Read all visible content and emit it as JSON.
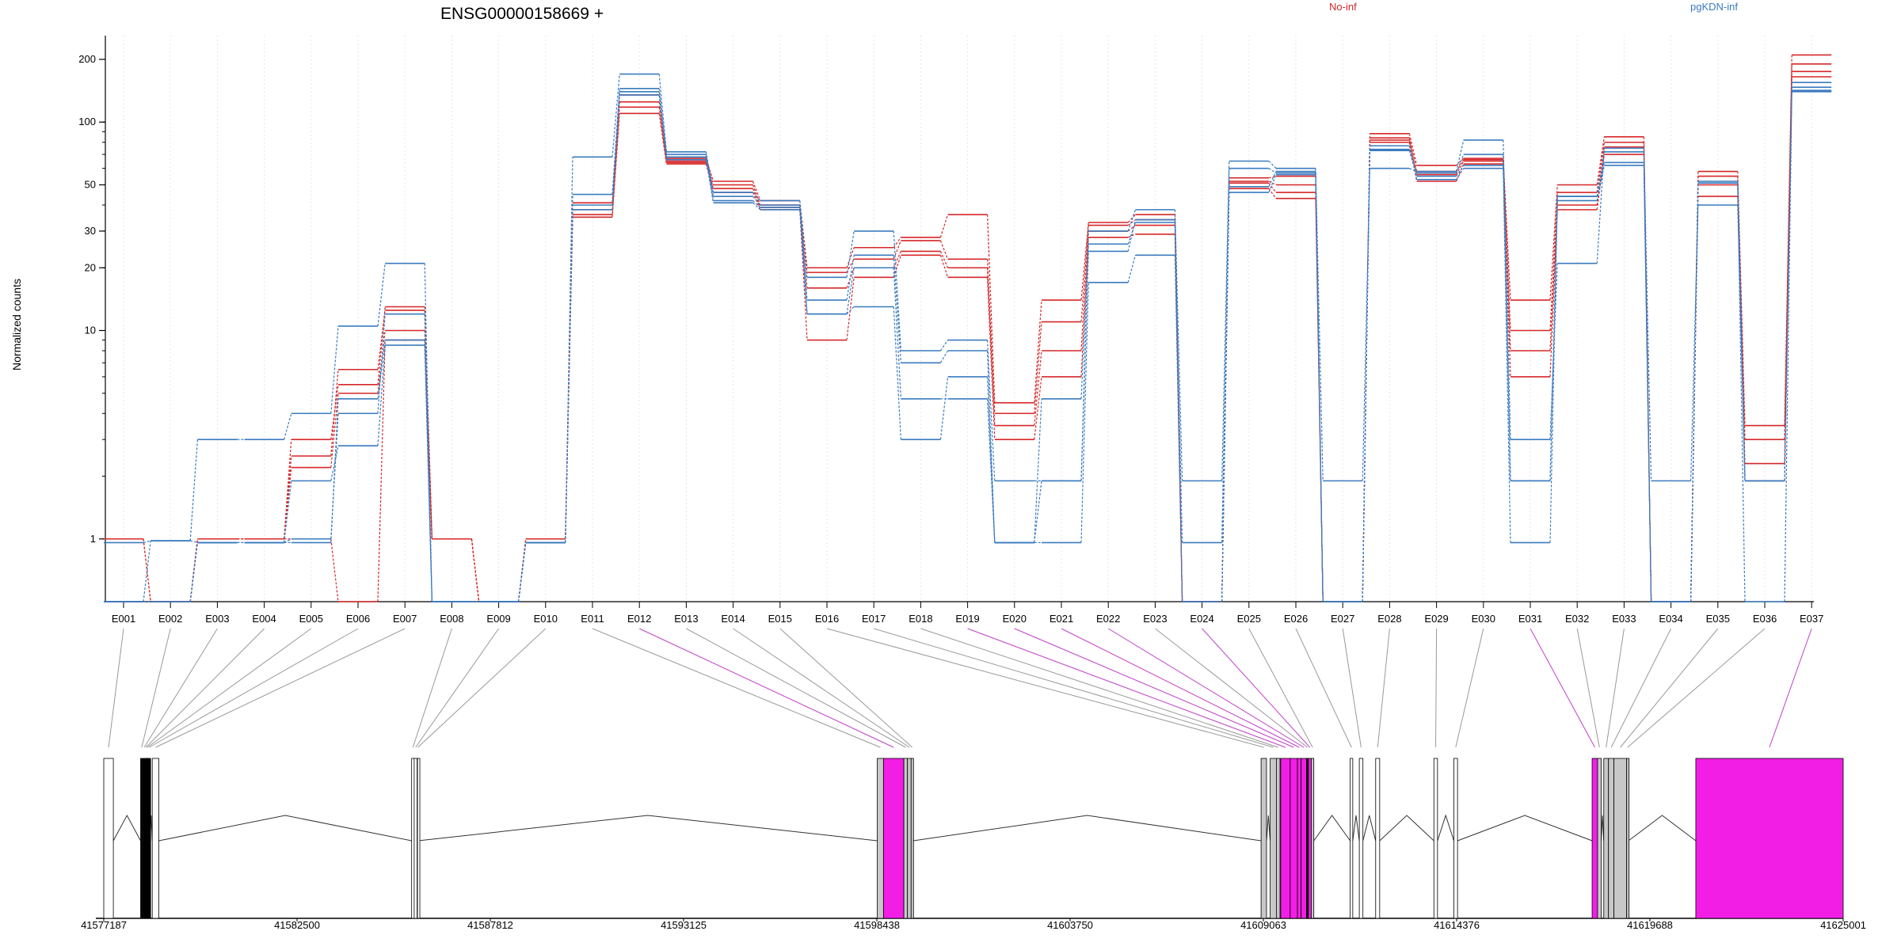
{
  "chart_data": {
    "type": "line",
    "title": "ENSG00000158669 +",
    "ylabel": "Normalized counts",
    "yscale": "log",
    "ylim": [
      0.5,
      260
    ],
    "yticks": [
      1,
      10,
      20,
      30,
      50,
      100,
      200
    ],
    "grid": "vertical dotted",
    "legend_placement": "top-right",
    "legend": [
      {
        "label": "No-inf",
        "color": "#d62728"
      },
      {
        "label": "pgKDN-inf",
        "color": "#3a7bbf"
      }
    ],
    "categories": [
      "E001",
      "E002",
      "E003",
      "E004",
      "E005",
      "E006",
      "E007",
      "E008",
      "E009",
      "E010",
      "E011",
      "E012",
      "E013",
      "E014",
      "E015",
      "E016",
      "E017",
      "E018",
      "E019",
      "E020",
      "E021",
      "E022",
      "E023",
      "E024",
      "E025",
      "E026",
      "E027",
      "E028",
      "E029",
      "E030",
      "E031",
      "E032",
      "E033",
      "E034",
      "E035",
      "E036",
      "E037"
    ],
    "series": [
      {
        "group": "No-inf",
        "color": "#d62728",
        "values": [
          1.0,
          0.5,
          1.0,
          1.0,
          2.5,
          6.5,
          12.5,
          1.0,
          0.5,
          1.0,
          38,
          135,
          67,
          52,
          42,
          20,
          25,
          28,
          36,
          4.5,
          14,
          33,
          36,
          0.5,
          54,
          55,
          0.5,
          88,
          62,
          67,
          14,
          50,
          85,
          0.5,
          58,
          3.5,
          210
        ]
      },
      {
        "group": "No-inf",
        "color": "#d62728",
        "values": [
          1.0,
          0.5,
          1.0,
          1.0,
          3.0,
          5.5,
          13.0,
          1.0,
          0.5,
          1.0,
          41,
          125,
          65,
          50,
          40,
          19,
          22,
          27,
          22,
          4.0,
          11,
          32,
          34,
          0.5,
          52,
          50,
          0.5,
          84,
          58,
          66,
          10,
          46,
          80,
          0.5,
          55,
          3.0,
          190
        ]
      },
      {
        "group": "No-inf",
        "color": "#d62728",
        "values": [
          0.5,
          0.5,
          1.0,
          1.0,
          2.2,
          5.0,
          10.0,
          1.0,
          0.5,
          1.0,
          36,
          118,
          64,
          48,
          39,
          16,
          20,
          24,
          20,
          3.5,
          8,
          30,
          32,
          0.5,
          51,
          46,
          0.5,
          82,
          56,
          65,
          8,
          40,
          76,
          0.5,
          50,
          2.3,
          175
        ]
      },
      {
        "group": "No-inf",
        "color": "#d62728",
        "values": [
          0.5,
          0.5,
          1.0,
          1.0,
          1.0,
          0.5,
          9.0,
          1.0,
          0.5,
          1.0,
          35,
          110,
          63,
          46,
          38,
          9,
          18,
          23,
          18,
          3.0,
          6,
          28,
          29,
          0.5,
          48,
          43,
          0.5,
          80,
          52,
          63,
          6,
          38,
          70,
          0.5,
          44,
          1.9,
          165
        ]
      },
      {
        "group": "pgKDN-inf",
        "color": "#3a7bbf",
        "values": [
          0.5,
          0.98,
          3.0,
          3.0,
          4.0,
          10.5,
          21,
          0.5,
          0.5,
          0.96,
          68,
          170,
          72,
          46,
          42,
          18,
          30,
          8,
          9,
          1.9,
          1.9,
          30,
          38,
          1.9,
          65,
          60,
          1.9,
          60,
          58,
          82,
          3.0,
          21,
          75,
          1.9,
          40,
          1.9,
          155
        ]
      },
      {
        "group": "pgKDN-inf",
        "color": "#3a7bbf",
        "values": [
          0.96,
          0.98,
          0.96,
          0.96,
          1.0,
          4.0,
          12,
          0.5,
          0.5,
          0.96,
          45,
          145,
          70,
          44,
          40,
          14,
          23,
          7,
          8,
          0.96,
          1.9,
          24,
          34,
          0.96,
          60,
          57,
          0.5,
          74,
          57,
          70,
          1.9,
          44,
          72,
          0.5,
          51,
          1.9,
          147
        ]
      },
      {
        "group": "pgKDN-inf",
        "color": "#3a7bbf",
        "values": [
          0.5,
          0.5,
          0.96,
          0.96,
          1.9,
          2.8,
          8.5,
          0.5,
          0.5,
          0.96,
          40,
          140,
          68,
          42,
          39,
          12,
          13,
          3.0,
          6,
          0.96,
          0.96,
          17,
          23,
          0.5,
          46,
          56,
          0.5,
          77,
          53,
          60,
          0.96,
          44,
          64,
          0.5,
          52,
          1.9,
          142
        ]
      },
      {
        "group": "pgKDN-inf",
        "color": "#3a7bbf",
        "values": [
          0.5,
          0.5,
          0.96,
          0.96,
          0.96,
          4.7,
          9.0,
          0.5,
          0.5,
          0.96,
          38,
          135,
          66,
          41,
          38,
          12,
          20,
          4.7,
          4.7,
          0.96,
          4.7,
          26,
          33,
          0.5,
          49,
          58,
          0.5,
          73,
          55,
          62,
          1.9,
          42,
          62,
          0.5,
          51,
          0.5,
          140
        ]
      }
    ],
    "gene_model": {
      "coordinate_ticks": [
        "41577187",
        "41582500",
        "41587812",
        "41593125",
        "41598438",
        "41603750",
        "41609063",
        "41614376",
        "41619688",
        "41625001"
      ],
      "xlim": [
        41577187,
        41625001
      ],
      "exons": [
        {
          "id": "E001",
          "start": 41577187,
          "end": 41577450,
          "color": "#ffffff",
          "diff": false
        },
        {
          "id": "E002",
          "start": 41578200,
          "end": 41578260,
          "color": "#000000",
          "diff": false
        },
        {
          "id": "E003",
          "start": 41578280,
          "end": 41578320,
          "color": "#000000",
          "diff": false
        },
        {
          "id": "E004",
          "start": 41578330,
          "end": 41578360,
          "color": "#000000",
          "diff": false
        },
        {
          "id": "E005",
          "start": 41578370,
          "end": 41578400,
          "color": "#000000",
          "diff": false
        },
        {
          "id": "E006",
          "start": 41578410,
          "end": 41578460,
          "color": "#000000",
          "diff": false
        },
        {
          "id": "E007",
          "start": 41578520,
          "end": 41578700,
          "color": "#ffffff",
          "diff": false
        },
        {
          "id": "E008",
          "start": 41585650,
          "end": 41585720,
          "color": "#ffffff",
          "diff": false
        },
        {
          "id": "E009",
          "start": 41585720,
          "end": 41585800,
          "color": "#ffffff",
          "diff": false
        },
        {
          "id": "E010",
          "start": 41585810,
          "end": 41585830,
          "color": "#ffffff",
          "diff": false
        },
        {
          "id": "E011",
          "start": 41598450,
          "end": 41598620,
          "color": "#c8c8c8",
          "diff": false
        },
        {
          "id": "E012",
          "start": 41598620,
          "end": 41599180,
          "color": "#f21ee6",
          "diff": true
        },
        {
          "id": "E013",
          "start": 41599180,
          "end": 41599280,
          "color": "#c8c8c8",
          "diff": false
        },
        {
          "id": "E014",
          "start": 41599280,
          "end": 41599380,
          "color": "#c8c8c8",
          "diff": false
        },
        {
          "id": "E015",
          "start": 41599380,
          "end": 41599440,
          "color": "#c8c8c8",
          "diff": false
        },
        {
          "id": "E016",
          "start": 41609000,
          "end": 41609150,
          "color": "#c8c8c8",
          "diff": false
        },
        {
          "id": "E017",
          "start": 41609250,
          "end": 41609420,
          "color": "#c8c8c8",
          "diff": false
        },
        {
          "id": "E018",
          "start": 41609420,
          "end": 41609520,
          "color": "#c8c8c8",
          "diff": false
        },
        {
          "id": "E019",
          "start": 41609540,
          "end": 41609800,
          "color": "#f21ee6",
          "diff": true
        },
        {
          "id": "E020",
          "start": 41609800,
          "end": 41610000,
          "color": "#f21ee6",
          "diff": true
        },
        {
          "id": "E021",
          "start": 41610000,
          "end": 41610100,
          "color": "#f21ee6",
          "diff": true
        },
        {
          "id": "E022",
          "start": 41610100,
          "end": 41610250,
          "color": "#f21ee6",
          "diff": true
        },
        {
          "id": "E023",
          "start": 41610250,
          "end": 41610300,
          "color": "#000000",
          "diff": false
        },
        {
          "id": "E024",
          "start": 41610300,
          "end": 41610380,
          "color": "#f21ee6",
          "diff": true
        },
        {
          "id": "E025",
          "start": 41610380,
          "end": 41610450,
          "color": "#c8c8c8",
          "diff": false
        },
        {
          "id": "E026",
          "start": 41611450,
          "end": 41611520,
          "color": "#ffffff",
          "diff": false
        },
        {
          "id": "E027",
          "start": 41611700,
          "end": 41611800,
          "color": "#ffffff",
          "diff": false
        },
        {
          "id": "E028",
          "start": 41612150,
          "end": 41612260,
          "color": "#ffffff",
          "diff": false
        },
        {
          "id": "E029",
          "start": 41613750,
          "end": 41613850,
          "color": "#ffffff",
          "diff": false
        },
        {
          "id": "E030",
          "start": 41614300,
          "end": 41614400,
          "color": "#ffffff",
          "diff": false
        },
        {
          "id": "E031",
          "start": 41618100,
          "end": 41618250,
          "color": "#f21ee6",
          "diff": true
        },
        {
          "id": "E032",
          "start": 41618250,
          "end": 41618350,
          "color": "#c8c8c8",
          "diff": false
        },
        {
          "id": "E033",
          "start": 41618420,
          "end": 41618550,
          "color": "#c8c8c8",
          "diff": false
        },
        {
          "id": "E034",
          "start": 41618550,
          "end": 41618700,
          "color": "#c8c8c8",
          "diff": false
        },
        {
          "id": "E035",
          "start": 41618700,
          "end": 41619050,
          "color": "#c8c8c8",
          "diff": false
        },
        {
          "id": "E036",
          "start": 41619050,
          "end": 41619100,
          "color": "#c8c8c8",
          "diff": false
        },
        {
          "id": "E037",
          "start": 41620950,
          "end": 41625001,
          "color": "#f21ee6",
          "diff": true
        }
      ]
    }
  }
}
